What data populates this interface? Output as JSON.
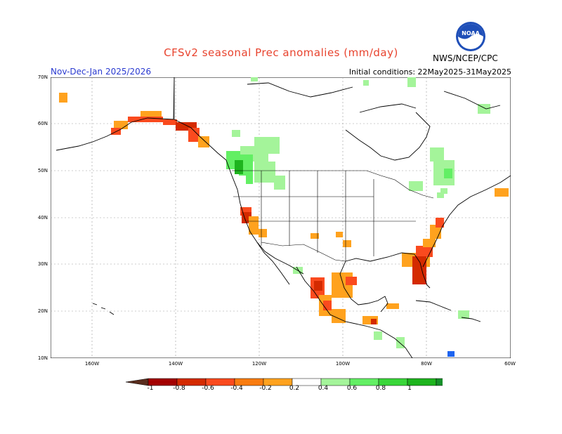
{
  "title": "CFSv2 seasonal Prec anomalies (mm/day)",
  "season": "Nov-Dec-Jan 2025/2026",
  "initial_conditions": "Initial conditions: 22May2025-31May2025",
  "agency": "NWS/NCEP/CPC",
  "logo_text": "NOAA",
  "lat_labels": [
    "70N",
    "60N",
    "50N",
    "40N",
    "30N",
    "20N",
    "10N"
  ],
  "lon_labels": [
    "160W",
    "140W",
    "120W",
    "100W",
    "80W",
    "60W"
  ],
  "colorbar": {
    "labels": [
      "-1",
      "-0.8",
      "-0.6",
      "-0.4",
      "-0.2",
      "0.2",
      "0.4",
      "0.6",
      "0.8",
      "1"
    ],
    "colors": [
      "#5a2d1e",
      "#a30000",
      "#d42a00",
      "#fa4a1e",
      "#f97c10",
      "#ffa21e",
      "#ffffff",
      "#a4f49a",
      "#63ef64",
      "#39d639",
      "#1eb41e",
      "#16902a",
      "#1e64f0"
    ]
  },
  "colors": {
    "dry_strong": "#d42a00",
    "dry_moderate": "#fa4a1e",
    "dry_weak": "#ffa21e",
    "wet_weak": "#a4f49a",
    "wet_moderate": "#63ef64",
    "wet_strong": "#1eb41e"
  }
}
